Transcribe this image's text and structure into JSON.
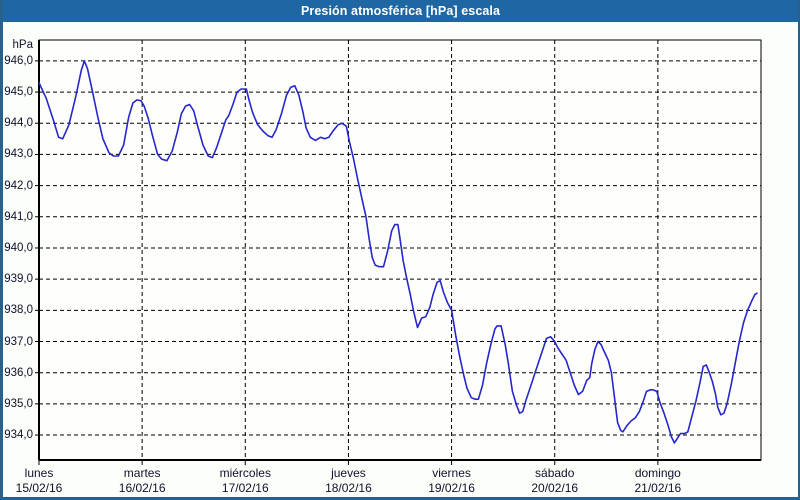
{
  "window": {
    "title": "Presión atmosférica [hPa] escala"
  },
  "colors": {
    "title_bar": "#1F67A3",
    "window_border": "#27618F",
    "page_bg": "#FCFEF9",
    "plot_bg": "#FEFFFD",
    "grid": "#000000",
    "line": "#2626CD",
    "label": "#10102E"
  },
  "chart_data": {
    "type": "line",
    "title": "Presión atmosférica [hPa] escala",
    "ylabel": "hPa",
    "grid": "dashed",
    "legend": "none",
    "ylim": [
      933.2,
      946.67
    ],
    "xlim_days": [
      0,
      7
    ],
    "y_ticks": [
      {
        "value": 946,
        "label": "946,0"
      },
      {
        "value": 945,
        "label": "945,0"
      },
      {
        "value": 944,
        "label": "944,0"
      },
      {
        "value": 943,
        "label": "943,0"
      },
      {
        "value": 942,
        "label": "942,0"
      },
      {
        "value": 941,
        "label": "941,0"
      },
      {
        "value": 940,
        "label": "940,0"
      },
      {
        "value": 939,
        "label": "939,0"
      },
      {
        "value": 938,
        "label": "938,0"
      },
      {
        "value": 937,
        "label": "937,0"
      },
      {
        "value": 936,
        "label": "936,0"
      },
      {
        "value": 935,
        "label": "935,0"
      },
      {
        "value": 934,
        "label": "934,0"
      }
    ],
    "x_days": [
      {
        "name": "lunes",
        "date": "15/02/16"
      },
      {
        "name": "martes",
        "date": "16/02/16"
      },
      {
        "name": "miércoles",
        "date": "17/02/16"
      },
      {
        "name": "jueves",
        "date": "18/02/16"
      },
      {
        "name": "viernes",
        "date": "19/02/16"
      },
      {
        "name": "sábado",
        "date": "20/02/16"
      },
      {
        "name": "domingo",
        "date": "21/02/16"
      }
    ],
    "series": [
      {
        "name": "Presión atmosférica [hPa]",
        "points": [
          [
            0.0,
            945.3
          ],
          [
            0.07,
            944.8
          ],
          [
            0.14,
            944.1
          ],
          [
            0.19,
            943.55
          ],
          [
            0.23,
            943.5
          ],
          [
            0.29,
            943.95
          ],
          [
            0.36,
            944.9
          ],
          [
            0.41,
            945.7
          ],
          [
            0.44,
            946.0
          ],
          [
            0.47,
            945.75
          ],
          [
            0.52,
            945.0
          ],
          [
            0.57,
            944.2
          ],
          [
            0.62,
            943.5
          ],
          [
            0.68,
            943.05
          ],
          [
            0.72,
            942.95
          ],
          [
            0.77,
            942.95
          ],
          [
            0.82,
            943.3
          ],
          [
            0.87,
            944.2
          ],
          [
            0.91,
            944.65
          ],
          [
            0.95,
            944.75
          ],
          [
            0.99,
            944.72
          ],
          [
            1.02,
            944.55
          ],
          [
            1.06,
            944.15
          ],
          [
            1.1,
            943.6
          ],
          [
            1.15,
            943.0
          ],
          [
            1.19,
            942.85
          ],
          [
            1.24,
            942.8
          ],
          [
            1.29,
            943.1
          ],
          [
            1.34,
            943.7
          ],
          [
            1.38,
            944.3
          ],
          [
            1.42,
            944.55
          ],
          [
            1.46,
            944.6
          ],
          [
            1.5,
            944.4
          ],
          [
            1.54,
            943.9
          ],
          [
            1.59,
            943.3
          ],
          [
            1.64,
            942.95
          ],
          [
            1.68,
            942.9
          ],
          [
            1.72,
            943.2
          ],
          [
            1.77,
            943.7
          ],
          [
            1.81,
            944.1
          ],
          [
            1.84,
            944.25
          ],
          [
            1.88,
            944.6
          ],
          [
            1.92,
            945.0
          ],
          [
            1.96,
            945.1
          ],
          [
            2.01,
            945.1
          ],
          [
            2.04,
            944.7
          ],
          [
            2.07,
            944.35
          ],
          [
            2.12,
            943.95
          ],
          [
            2.17,
            943.75
          ],
          [
            2.22,
            943.6
          ],
          [
            2.26,
            943.55
          ],
          [
            2.3,
            943.8
          ],
          [
            2.35,
            944.3
          ],
          [
            2.4,
            944.9
          ],
          [
            2.44,
            945.15
          ],
          [
            2.48,
            945.2
          ],
          [
            2.52,
            944.9
          ],
          [
            2.56,
            944.35
          ],
          [
            2.59,
            943.85
          ],
          [
            2.63,
            943.55
          ],
          [
            2.68,
            943.45
          ],
          [
            2.73,
            943.55
          ],
          [
            2.77,
            943.5
          ],
          [
            2.81,
            943.55
          ],
          [
            2.85,
            943.75
          ],
          [
            2.9,
            943.95
          ],
          [
            2.94,
            944.0
          ],
          [
            2.98,
            943.9
          ],
          [
            3.01,
            943.4
          ],
          [
            3.05,
            942.85
          ],
          [
            3.09,
            942.2
          ],
          [
            3.13,
            941.6
          ],
          [
            3.17,
            941.0
          ],
          [
            3.2,
            940.3
          ],
          [
            3.23,
            939.7
          ],
          [
            3.26,
            939.45
          ],
          [
            3.3,
            939.4
          ],
          [
            3.34,
            939.4
          ],
          [
            3.38,
            939.9
          ],
          [
            3.42,
            940.55
          ],
          [
            3.45,
            940.75
          ],
          [
            3.48,
            940.75
          ],
          [
            3.5,
            940.3
          ],
          [
            3.53,
            939.6
          ],
          [
            3.56,
            939.1
          ],
          [
            3.6,
            938.5
          ],
          [
            3.63,
            938.0
          ],
          [
            3.67,
            937.45
          ],
          [
            3.71,
            937.75
          ],
          [
            3.75,
            937.8
          ],
          [
            3.79,
            938.1
          ],
          [
            3.82,
            938.5
          ],
          [
            3.86,
            938.9
          ],
          [
            3.89,
            938.95
          ],
          [
            3.92,
            938.6
          ],
          [
            3.96,
            938.25
          ],
          [
            4.0,
            938.0
          ],
          [
            4.04,
            937.2
          ],
          [
            4.08,
            936.5
          ],
          [
            4.12,
            935.9
          ],
          [
            4.15,
            935.5
          ],
          [
            4.19,
            935.2
          ],
          [
            4.23,
            935.15
          ],
          [
            4.26,
            935.15
          ],
          [
            4.3,
            935.6
          ],
          [
            4.34,
            936.3
          ],
          [
            4.38,
            936.9
          ],
          [
            4.42,
            937.4
          ],
          [
            4.44,
            937.5
          ],
          [
            4.48,
            937.5
          ],
          [
            4.52,
            936.9
          ],
          [
            4.55,
            936.3
          ],
          [
            4.59,
            935.4
          ],
          [
            4.63,
            934.95
          ],
          [
            4.66,
            934.7
          ],
          [
            4.69,
            934.75
          ],
          [
            4.72,
            935.1
          ],
          [
            4.77,
            935.6
          ],
          [
            4.82,
            936.1
          ],
          [
            4.87,
            936.6
          ],
          [
            4.92,
            937.1
          ],
          [
            4.96,
            937.15
          ],
          [
            5.0,
            937.0
          ],
          [
            5.03,
            936.8
          ],
          [
            5.07,
            936.6
          ],
          [
            5.11,
            936.4
          ],
          [
            5.15,
            936.0
          ],
          [
            5.19,
            935.6
          ],
          [
            5.23,
            935.3
          ],
          [
            5.27,
            935.4
          ],
          [
            5.31,
            935.75
          ],
          [
            5.34,
            935.85
          ],
          [
            5.36,
            936.3
          ],
          [
            5.39,
            936.75
          ],
          [
            5.42,
            937.0
          ],
          [
            5.45,
            936.9
          ],
          [
            5.49,
            936.6
          ],
          [
            5.52,
            936.4
          ],
          [
            5.55,
            936.0
          ],
          [
            5.58,
            935.2
          ],
          [
            5.61,
            934.4
          ],
          [
            5.64,
            934.15
          ],
          [
            5.66,
            934.1
          ],
          [
            5.7,
            934.3
          ],
          [
            5.74,
            934.45
          ],
          [
            5.78,
            934.55
          ],
          [
            5.82,
            934.75
          ],
          [
            5.86,
            935.1
          ],
          [
            5.89,
            935.4
          ],
          [
            5.93,
            935.45
          ],
          [
            5.95,
            935.45
          ],
          [
            5.99,
            935.4
          ],
          [
            6.02,
            935.05
          ],
          [
            6.06,
            934.7
          ],
          [
            6.1,
            934.3
          ],
          [
            6.13,
            933.95
          ],
          [
            6.16,
            933.75
          ],
          [
            6.19,
            933.9
          ],
          [
            6.22,
            934.05
          ],
          [
            6.26,
            934.05
          ],
          [
            6.29,
            934.1
          ],
          [
            6.33,
            934.6
          ],
          [
            6.37,
            935.1
          ],
          [
            6.41,
            935.7
          ],
          [
            6.44,
            936.2
          ],
          [
            6.47,
            936.25
          ],
          [
            6.5,
            936.0
          ],
          [
            6.53,
            935.7
          ],
          [
            6.56,
            935.3
          ],
          [
            6.58,
            934.9
          ],
          [
            6.61,
            934.65
          ],
          [
            6.64,
            934.7
          ],
          [
            6.67,
            935.0
          ],
          [
            6.71,
            935.6
          ],
          [
            6.75,
            936.3
          ],
          [
            6.79,
            937.0
          ],
          [
            6.83,
            937.6
          ],
          [
            6.87,
            938.0
          ],
          [
            6.91,
            938.3
          ],
          [
            6.94,
            938.5
          ],
          [
            6.96,
            938.55
          ]
        ]
      }
    ]
  }
}
